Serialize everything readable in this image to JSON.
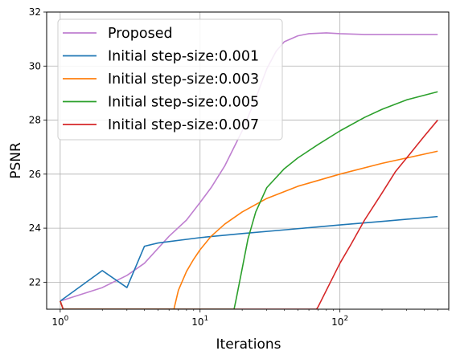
{
  "chart_data": {
    "type": "line",
    "x_scale": "log",
    "xlabel": "Iterations",
    "ylabel": "PSNR",
    "xlim": [
      0.8,
      600
    ],
    "ylim": [
      21,
      32
    ],
    "x_ticks": [
      {
        "value": 1,
        "base": "10",
        "exp": "0"
      },
      {
        "value": 10,
        "base": "10",
        "exp": "1"
      },
      {
        "value": 100,
        "base": "10",
        "exp": "2"
      }
    ],
    "y_ticks": [
      22,
      24,
      26,
      28,
      30,
      32
    ],
    "grid": true,
    "legend_position": "top-left",
    "series": [
      {
        "name": "Proposed",
        "color": "#bf7fd0",
        "points": [
          [
            1,
            21.3
          ],
          [
            2,
            21.8
          ],
          [
            3,
            22.25
          ],
          [
            4,
            22.7
          ],
          [
            5,
            23.25
          ],
          [
            6,
            23.7
          ],
          [
            8,
            24.3
          ],
          [
            10,
            24.95
          ],
          [
            12,
            25.5
          ],
          [
            15,
            26.3
          ],
          [
            20,
            27.6
          ],
          [
            25,
            28.8
          ],
          [
            30,
            29.9
          ],
          [
            35,
            30.55
          ],
          [
            40,
            30.9
          ],
          [
            50,
            31.12
          ],
          [
            60,
            31.2
          ],
          [
            80,
            31.23
          ],
          [
            100,
            31.2
          ],
          [
            150,
            31.17
          ],
          [
            200,
            31.17
          ],
          [
            300,
            31.17
          ],
          [
            500,
            31.17
          ]
        ]
      },
      {
        "name": "Initial step-size:0.001",
        "color": "#1f77b4",
        "points": [
          [
            1,
            21.3
          ],
          [
            2,
            22.43
          ],
          [
            3,
            21.8
          ],
          [
            4,
            23.33
          ],
          [
            5,
            23.45
          ],
          [
            10,
            23.65
          ],
          [
            20,
            23.8
          ],
          [
            50,
            23.98
          ],
          [
            100,
            24.12
          ],
          [
            200,
            24.25
          ],
          [
            500,
            24.43
          ]
        ]
      },
      {
        "name": "Initial step-size:0.003",
        "color": "#ff7f0e",
        "points": [
          [
            1,
            21.3
          ],
          [
            1.05,
            21.0
          ],
          [
            6.5,
            21.0
          ],
          [
            7,
            21.7
          ],
          [
            8,
            22.4
          ],
          [
            9,
            22.85
          ],
          [
            10,
            23.2
          ],
          [
            12,
            23.7
          ],
          [
            15,
            24.15
          ],
          [
            20,
            24.6
          ],
          [
            30,
            25.1
          ],
          [
            50,
            25.55
          ],
          [
            100,
            26.0
          ],
          [
            200,
            26.4
          ],
          [
            500,
            26.85
          ]
        ]
      },
      {
        "name": "Initial step-size:0.005",
        "color": "#2ca02c",
        "points": [
          [
            1,
            21.3
          ],
          [
            1.05,
            21.0
          ],
          [
            17.5,
            21.0
          ],
          [
            18,
            21.3
          ],
          [
            20,
            22.5
          ],
          [
            22,
            23.6
          ],
          [
            25,
            24.6
          ],
          [
            30,
            25.5
          ],
          [
            40,
            26.2
          ],
          [
            50,
            26.6
          ],
          [
            70,
            27.1
          ],
          [
            100,
            27.6
          ],
          [
            150,
            28.1
          ],
          [
            200,
            28.4
          ],
          [
            300,
            28.75
          ],
          [
            500,
            29.05
          ]
        ]
      },
      {
        "name": "Initial step-size:0.007",
        "color": "#d62728",
        "points": [
          [
            1,
            21.3
          ],
          [
            1.05,
            21.0
          ],
          [
            68,
            21.0
          ],
          [
            70,
            21.1
          ],
          [
            80,
            21.7
          ],
          [
            100,
            22.7
          ],
          [
            120,
            23.4
          ],
          [
            150,
            24.3
          ],
          [
            200,
            25.3
          ],
          [
            250,
            26.1
          ],
          [
            300,
            26.6
          ],
          [
            400,
            27.4
          ],
          [
            500,
            28.0
          ]
        ]
      }
    ]
  }
}
